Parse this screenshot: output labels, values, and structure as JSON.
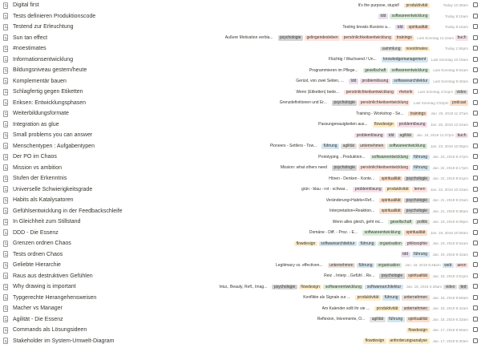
{
  "tag_colors": {
    "produktivität": "#fdecc8",
    "tdd": "#e8deee",
    "softwareentwicklung": "#dbeddb",
    "spiritualität": "#fadec9",
    "psychologie": "#d3d3d3",
    "gelingendesleben": "#ffe2dd",
    "persönlichkeitsentwicklung": "#ffe2dd",
    "trainings": "#fadec9",
    "buch": "#f5e0e9",
    "sammlung": "#e3e2e0",
    "noestimates": "#fdecc8",
    "knowledgemanagement": "#d3e5ef",
    "gesellschaft": "#dbeddb",
    "problemlösung": "#f5e0e9",
    "softwarearchitektur": "#d3e5ef",
    "rhetorik": "#ffe2dd",
    "video": "#e3e2e0",
    "podcast": "#fadec9",
    "flowdesign": "#fdecc8",
    "führung": "#d3e5ef",
    "agilität": "#e3e2e0",
    "unternehmen": "#eee0da",
    "lernen": "#ffe2dd",
    "politik": "#e3e2e0",
    "organisation": "#dbeddb",
    "philosophie": "#f5e0e9",
    "web": "#d3e5ef",
    "aeon": "#ffe2dd",
    "ted": "#d3d3d3",
    "anforderungsanalyse": "#fdecc8"
  },
  "rows": [
    {
      "title": "Digital first",
      "snippet": "It's the purpose, stupid!",
      "tags": [
        "produktivität"
      ],
      "date": "Today 10:38am"
    },
    {
      "title": "Tests definieren Produktionscode",
      "snippet": "",
      "tags": [
        "tdd",
        "softwareentwicklung"
      ],
      "date": "Today 9:10am"
    },
    {
      "title": "Testend zur Erleuchtung",
      "snippet": "Testing breaks illusions a...",
      "tags": [
        "tdd",
        "spiritualität"
      ],
      "date": "Today 9:15am"
    },
    {
      "title": "Sun tan effect",
      "snippet": "Äußere Motivation verbla...",
      "tags": [
        "psychologie",
        "gelingendesleben",
        "persönlichkeitsentwicklung",
        "trainings"
      ],
      "date": "Last Sonntag 11:42am",
      "tags2": [
        "buch"
      ]
    },
    {
      "title": "#noestimates",
      "snippet": "",
      "tags": [
        "sammlung",
        "noestimates"
      ],
      "date": "Today 1:55pm"
    },
    {
      "title": "Informationsentwicklung",
      "snippet": "Flüchtig / Wachsend / Un...",
      "tags": [
        "knowledgemanagement"
      ],
      "date": "Last Sonntag 10:19am"
    },
    {
      "title": "Bildungsniveau gestern/heute",
      "snippet": "Programmieren im Pflege...",
      "tags": [
        "gesellschaft",
        "softwareentwicklung"
      ],
      "date": "Last Sonntag 9:54am"
    },
    {
      "title": "Komplementär bauen",
      "snippet": "Gerüst, von zwei Seiten, ...",
      "tags": [
        "tdd",
        "problemlösung",
        "softwarearchitektur"
      ],
      "date": "Last Sonntag 9:40am"
    },
    {
      "title": "Schlagfertig gegen Etiketten",
      "snippet": "Wenn (Etiketten) bede...",
      "tags": [
        "persönlichkeitsentwicklung",
        "rhetorik"
      ],
      "date": "Last Sonntag 4:01pm",
      "tags2": [
        "video"
      ]
    },
    {
      "title": "Eriksen: Entwicklungsphasen",
      "snippet": "Grenzdefinitionen und Er...",
      "tags": [
        "psychologie",
        "persönlichkeitsentwicklung"
      ],
      "date": "Last Sonntag 3:52pm",
      "tags2": [
        "podcast"
      ]
    },
    {
      "title": "Weiterbildungsformate",
      "snippet": "Training - Workshop - Se...",
      "tags": [
        "trainings"
      ],
      "date": "Jan. 26, 2019 11:37am"
    },
    {
      "title": "Integration as glue",
      "snippet": "Passungenauigkeiten aus...",
      "tags": [
        "flowdesign",
        "problemlösung"
      ],
      "date": "Jan. 25, 2019 12:24am"
    },
    {
      "title": "Small problems you can answer",
      "snippet": "",
      "tags": [
        "problemlösung",
        "tdd",
        "agilität"
      ],
      "date": "Jan. 24, 2019 11:37pm",
      "tags2": [
        "buch"
      ]
    },
    {
      "title": "Menschentypen : Aufgabentypen",
      "snippet": "Pioneers - Settlers - Tow...",
      "tags": [
        "führung",
        "agilität",
        "unternehmen",
        "softwareentwicklung"
      ],
      "date": "Jan. 23, 2019 10:05pm"
    },
    {
      "title": "Der PO im Chaos",
      "snippet": "Prototyping→Produktion...",
      "tags": [
        "softwareentwicklung",
        "führung"
      ],
      "date": "Jan. 23, 2019 9:47pm"
    },
    {
      "title": "Mission vs ambition",
      "snippet": "Mission: what others need",
      "tags": [
        "psychologie",
        "persönlichkeitsentwicklung",
        "führung"
      ],
      "date": "Jan. 22, 2019 6:17pm"
    },
    {
      "title": "Stufen der Erkenntnis",
      "snippet": "Hören - Denken - Konte...",
      "tags": [
        "spiritualität",
        "psychologie"
      ],
      "date": "Jan. 22, 2019 8:51pm"
    },
    {
      "title": "Universelle Schwierigkeitsgrade",
      "snippet": "grün - blau - rot - schwar...",
      "tags": [
        "problemlösung",
        "produktivität",
        "lernen"
      ],
      "date": "Jan. 22, 2019 10:22am"
    },
    {
      "title": "Habits als Katalysatoren",
      "snippet": "Veränderung+Habits+Ref...",
      "tags": [
        "spiritualität",
        "psychologie"
      ],
      "date": "Jan. 21, 2019 9:23am"
    },
    {
      "title": "Gefühlsentwicklung in der Feedbackschleife",
      "snippet": "Interpretation+Reaktion...",
      "tags": [
        "spiritualität",
        "psychologie"
      ],
      "date": "Jan. 21, 2019 9:38am"
    },
    {
      "title": "In Gleichheit zum Stillstand",
      "snippet": "Wenn alles gleich, geht nic...",
      "tags": [
        "gesellschaft",
        "politik"
      ],
      "date": "Jan. 19, 2019 6:09pm"
    },
    {
      "title": "DDD - Die Essenz",
      "snippet": "Domäne - Diff. - Proz. - E...",
      "tags": [
        "softwareentwicklung",
        "spiritualität"
      ],
      "date": "Jan. 19, 2019 10:06am"
    },
    {
      "title": "Grenzen ordnen Chaos",
      "snippet": "",
      "tags": [
        "flowdesign",
        "softwarearchitektur",
        "führung",
        "organisation",
        "philosophie"
      ],
      "date": "Jan. 19, 2019 9:54am"
    },
    {
      "title": "Tests ordnen Chaos",
      "snippet": "",
      "tags": [
        "tdd",
        "führung"
      ],
      "date": "Jan. 19, 2019 9:42am"
    },
    {
      "title": "Geliebte Hierarchie",
      "snippet": "Legitimacy vs. effectiven...",
      "tags": [
        "unternehmen",
        "führung",
        "organisation"
      ],
      "date": "Jan. 19, 2019 8:48am",
      "tags2": [
        "web",
        "aeon"
      ]
    },
    {
      "title": "Raus aus destruktiven Gefühlen",
      "snippet": "Reiz→Interp→Gefühl→Re...",
      "tags": [
        "psychologie",
        "spiritualität"
      ],
      "date": "Jan. 18, 2019 4:51pm"
    },
    {
      "title": "Why drawing is important",
      "snippet": "Intui., Beauty, Refl., Imag...",
      "tags": [
        "psychologie",
        "flowdesign",
        "softwareentwicklung",
        "softwarearchitektur"
      ],
      "date": "Jan. 18, 2019 2:28am",
      "tags2": [
        "video",
        "ted"
      ]
    },
    {
      "title": "Typgerechte Herangehensweisen",
      "snippet": "Konflikte als Signale zur ...",
      "tags": [
        "produktivität",
        "führung",
        "unternehmen"
      ],
      "date": "Jan. 18, 2019 9:59am"
    },
    {
      "title": "Macher vs Manager",
      "snippet": "Am Kalender sollt ihr sie ...",
      "tags": [
        "produktivität",
        "unternehmen"
      ],
      "date": "Jan. 18, 2019 9:42am"
    },
    {
      "title": "Agilität - Die Essenz",
      "snippet": "Reflexion, Inkremente, Ö...",
      "tags": [
        "agilität",
        "führung",
        "spiritualität"
      ],
      "date": "Jan. 18, 2019 6:33am"
    },
    {
      "title": "Commands als Lösungsideen",
      "snippet": "",
      "tags": [
        "flowdesign"
      ],
      "date": "Jan. 17, 2019 9:50am"
    },
    {
      "title": "Stakeholder im System-Umwelt-Diagram",
      "snippet": "",
      "tags": [
        "flowdesign",
        "anforderungsanalyse"
      ],
      "date": "Jan. 17, 2019 9:30am"
    }
  ]
}
